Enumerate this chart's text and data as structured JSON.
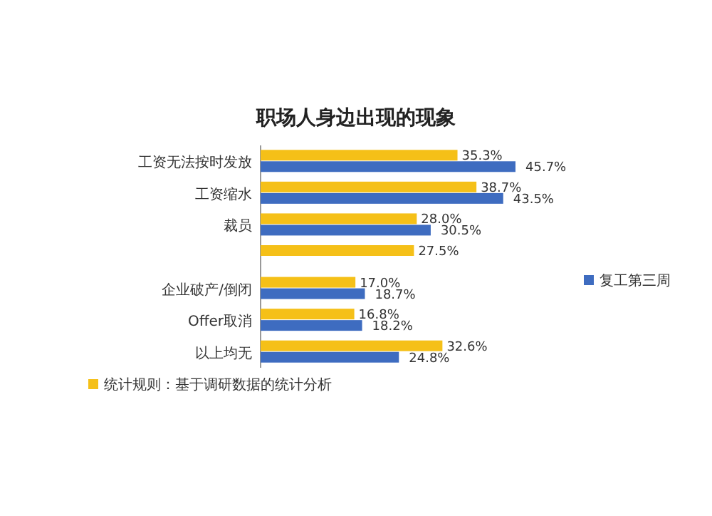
{
  "chart_data": {
    "type": "bar",
    "orientation": "horizontal",
    "title": "职场人身边出现的现象",
    "categories": [
      "工资无法按时发放",
      "工资缩水",
      "裁员",
      null,
      "企业破产/倒闭",
      "Offer取消",
      "以上均无"
    ],
    "series": [
      {
        "color": "#f5c018",
        "values": [
          35.3,
          38.7,
          28.0,
          27.5,
          17.0,
          16.8,
          32.6
        ],
        "value_labels": [
          "35.3%",
          "38.7%",
          "28.0%",
          "27.5%",
          "17.0%",
          "16.8%",
          "32.6%"
        ]
      },
      {
        "name": "复工第三周",
        "color": "#3e6cc0",
        "values": [
          45.7,
          43.5,
          30.5,
          null,
          18.7,
          18.2,
          24.8
        ],
        "value_labels": [
          "45.7%",
          "43.5%",
          "30.5%",
          null,
          "18.7%",
          "18.2%",
          "24.8%"
        ]
      }
    ],
    "legend": "right",
    "annotations": [
      "统计规则：基于调研数据的统计分析"
    ]
  }
}
